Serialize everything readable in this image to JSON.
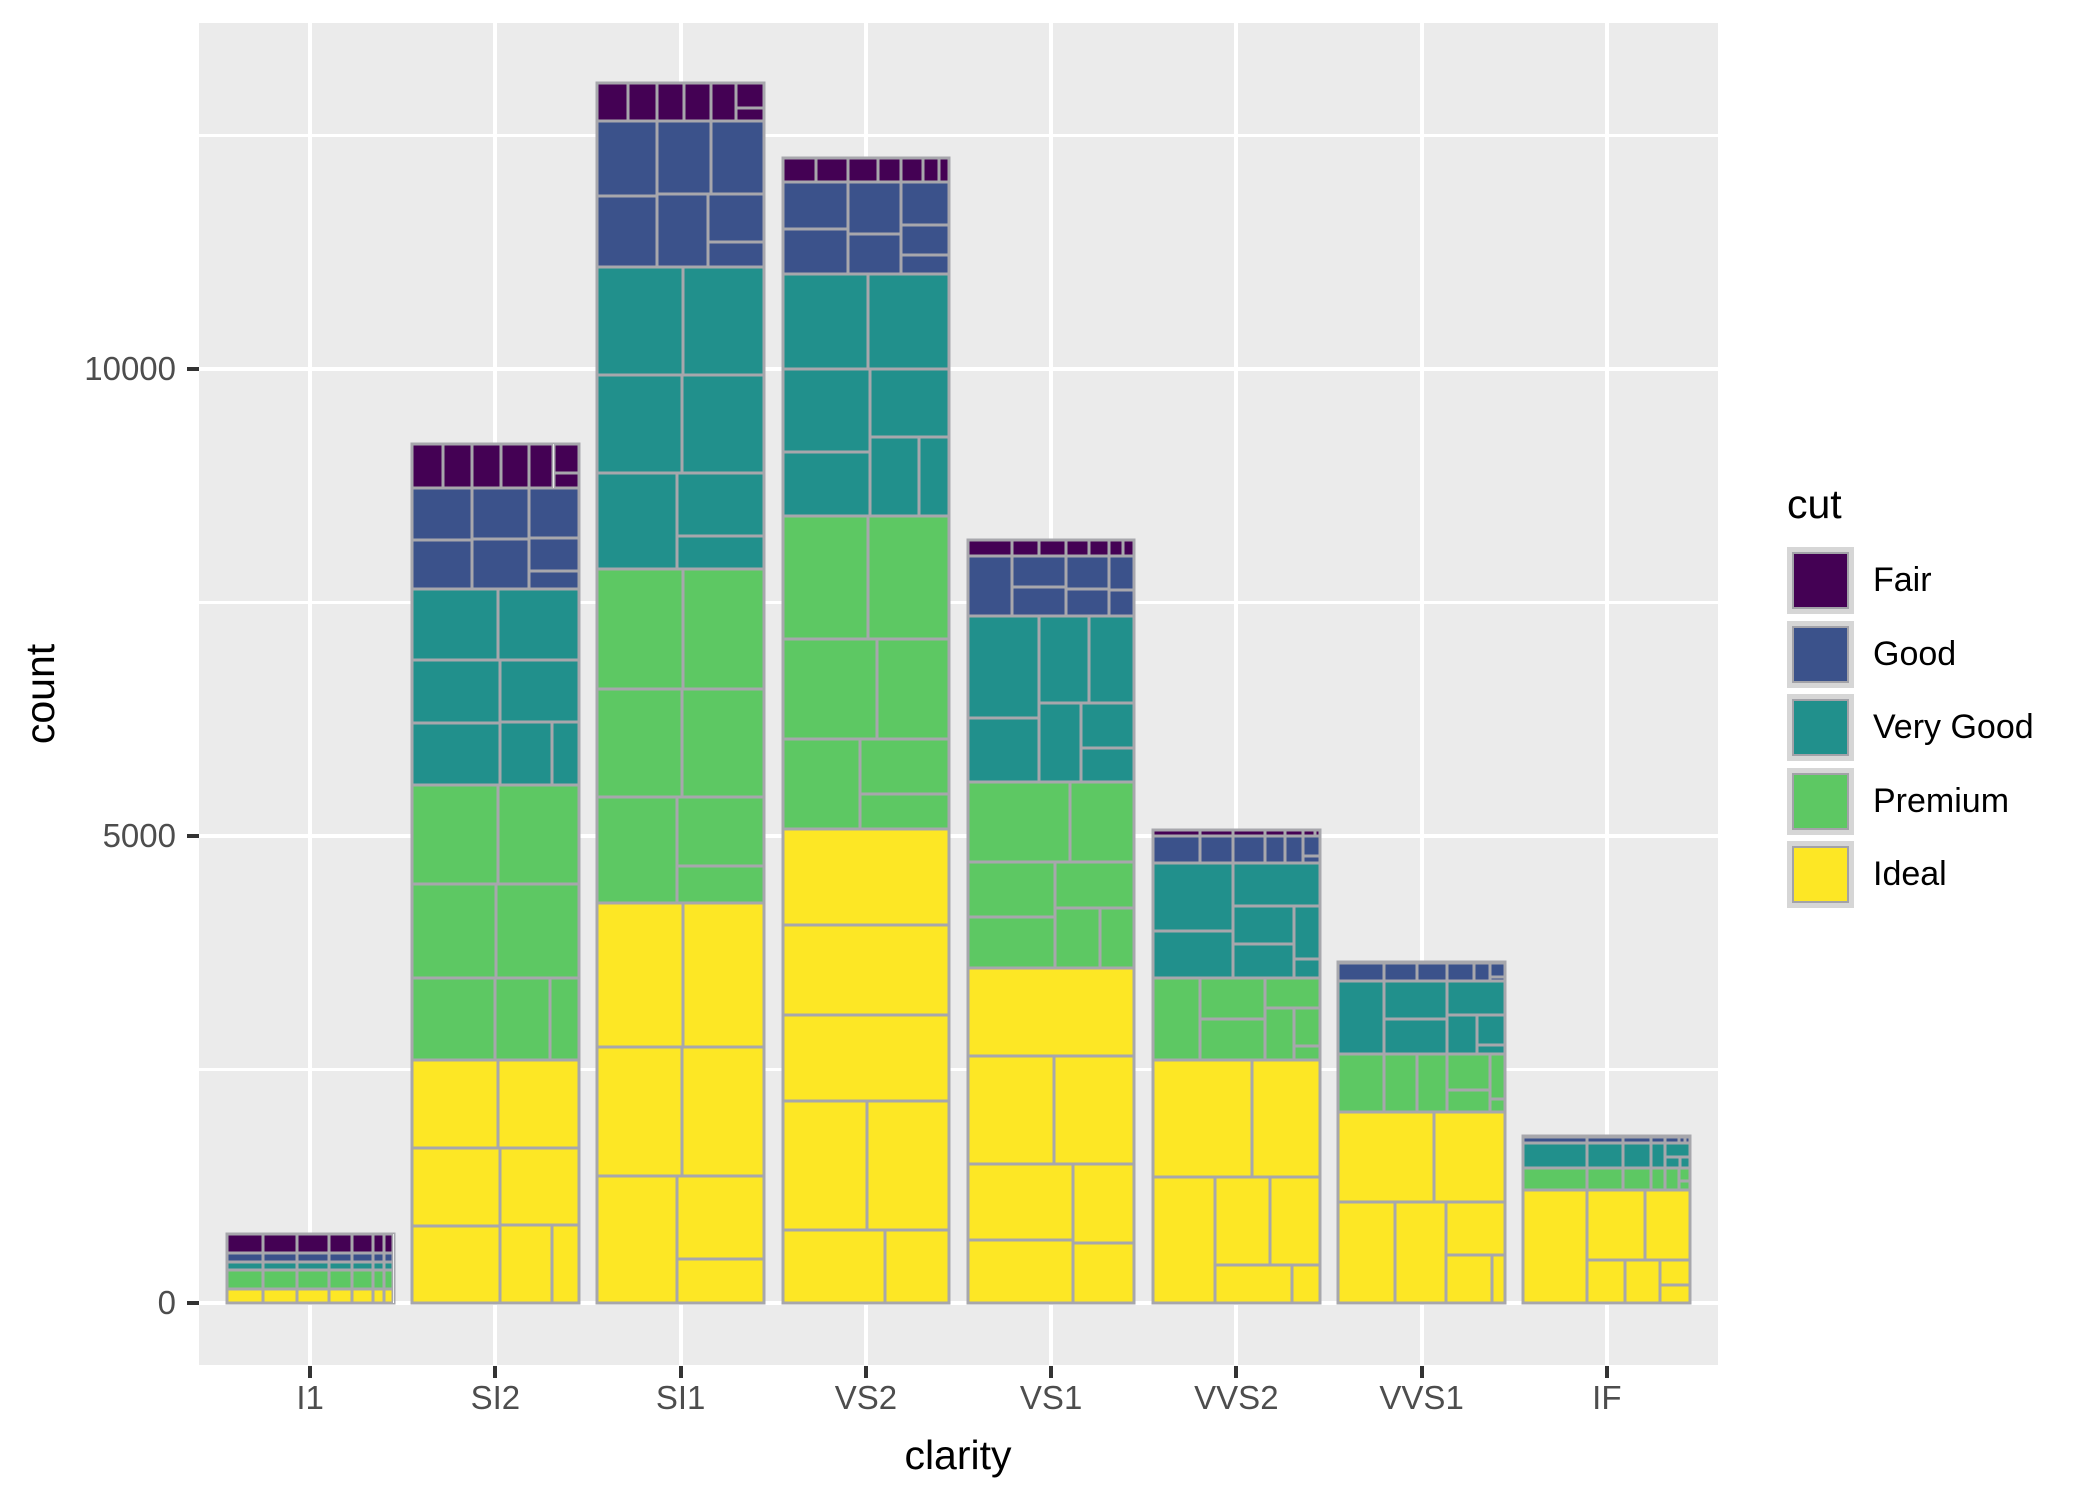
{
  "chart_data": {
    "type": "bar",
    "stacked": true,
    "title": "",
    "xlabel": "clarity",
    "ylabel": "count",
    "categories": [
      "I1",
      "SI2",
      "SI1",
      "VS2",
      "VS1",
      "VVS2",
      "VVS1",
      "IF"
    ],
    "series": [
      {
        "name": "Fair",
        "color": "#440154",
        "values": [
          210,
          466,
          408,
          261,
          170,
          69,
          17,
          9
        ]
      },
      {
        "name": "Good",
        "color": "#3B528B",
        "values": [
          96,
          1081,
          1560,
          978,
          648,
          286,
          186,
          71
        ]
      },
      {
        "name": "Very Good",
        "color": "#21908C",
        "values": [
          84,
          2100,
          3240,
          2591,
          1775,
          1235,
          789,
          268
        ]
      },
      {
        "name": "Premium",
        "color": "#5DC863",
        "values": [
          205,
          2949,
          3575,
          3357,
          1989,
          870,
          616,
          230
        ]
      },
      {
        "name": "Ideal",
        "color": "#FDE725",
        "values": [
          146,
          2598,
          4282,
          5071,
          3589,
          2606,
          2047,
          1212
        ]
      }
    ],
    "stack_order_bottom_to_top": [
      "Ideal",
      "Premium",
      "Very Good",
      "Good",
      "Fair"
    ],
    "category_totals": [
      741,
      9194,
      13065,
      12258,
      8171,
      5066,
      3655,
      1790
    ],
    "inner_cells": {
      "note": "each cut segment is subdivided into 7 grey-outlined sub-rectangles",
      "weights_per_category": [
        [
          42,
          102,
          143,
          150,
          162,
          92,
          50
        ],
        [
          1370,
          1713,
          1609,
          1548,
          1563,
          912,
          479
        ],
        [
          2083,
          2426,
          2131,
          1976,
          2275,
          1424,
          750
        ],
        [
          1697,
          2470,
          2201,
          2347,
          1643,
          1169,
          731
        ],
        [
          705,
          1281,
          1364,
          2148,
          1169,
          962,
          542
        ],
        [
          553,
          991,
          975,
          1443,
          608,
          365,
          131
        ],
        [
          252,
          656,
          734,
          999,
          585,
          355,
          74
        ],
        [
          73,
          158,
          385,
          681,
          299,
          143,
          51
        ]
      ]
    },
    "y_ticks": [
      0,
      5000,
      10000
    ],
    "y_minor_ticks": [
      2500,
      7500,
      12500
    ],
    "ylim": [
      0,
      13718
    ],
    "grid": true,
    "legend": {
      "title": "cut",
      "position": "right"
    }
  },
  "colors": {
    "panel_bg": "#EBEBEB",
    "grid": "#FFFFFF",
    "cell_border": "#A7A7AC",
    "tick_text": "#4D4D4D",
    "title_text": "#000000",
    "tick_mark": "#333333",
    "legend_key_bg": "#D6D6D6"
  }
}
